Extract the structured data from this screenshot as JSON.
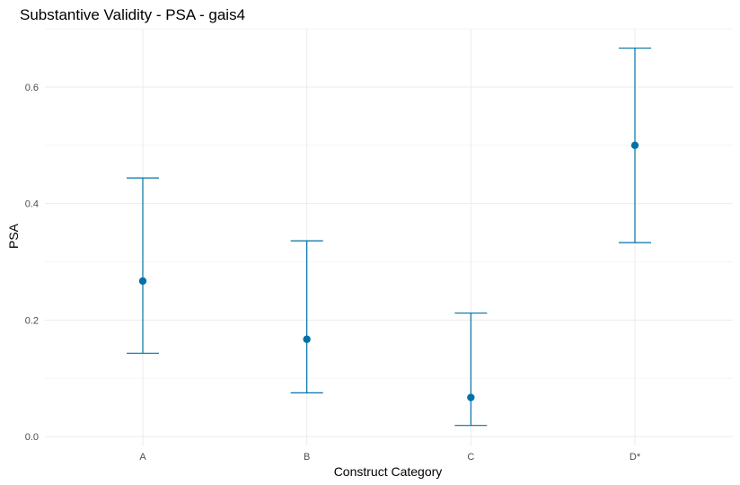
{
  "chart_data": {
    "type": "scatter",
    "title": "Substantive Validity - PSA - gais4",
    "xlabel": "Construct Category",
    "ylabel": "PSA",
    "categories": [
      "A",
      "B",
      "C",
      "D*"
    ],
    "series": [
      {
        "values": [
          0.267,
          0.167,
          0.067,
          0.5
        ],
        "lower": [
          0.143,
          0.075,
          0.019,
          0.333
        ],
        "upper": [
          0.444,
          0.336,
          0.212,
          0.667
        ]
      }
    ],
    "ylim": [
      -0.02,
      0.7
    ],
    "yticks": [
      0.0,
      0.2,
      0.4,
      0.6
    ],
    "yticks_labels": [
      "0.0",
      "0.2",
      "0.4",
      "0.6"
    ],
    "grid": true,
    "legend": "none",
    "colors": {
      "point": "#0072a7",
      "errorbar": "#0072a7"
    }
  }
}
